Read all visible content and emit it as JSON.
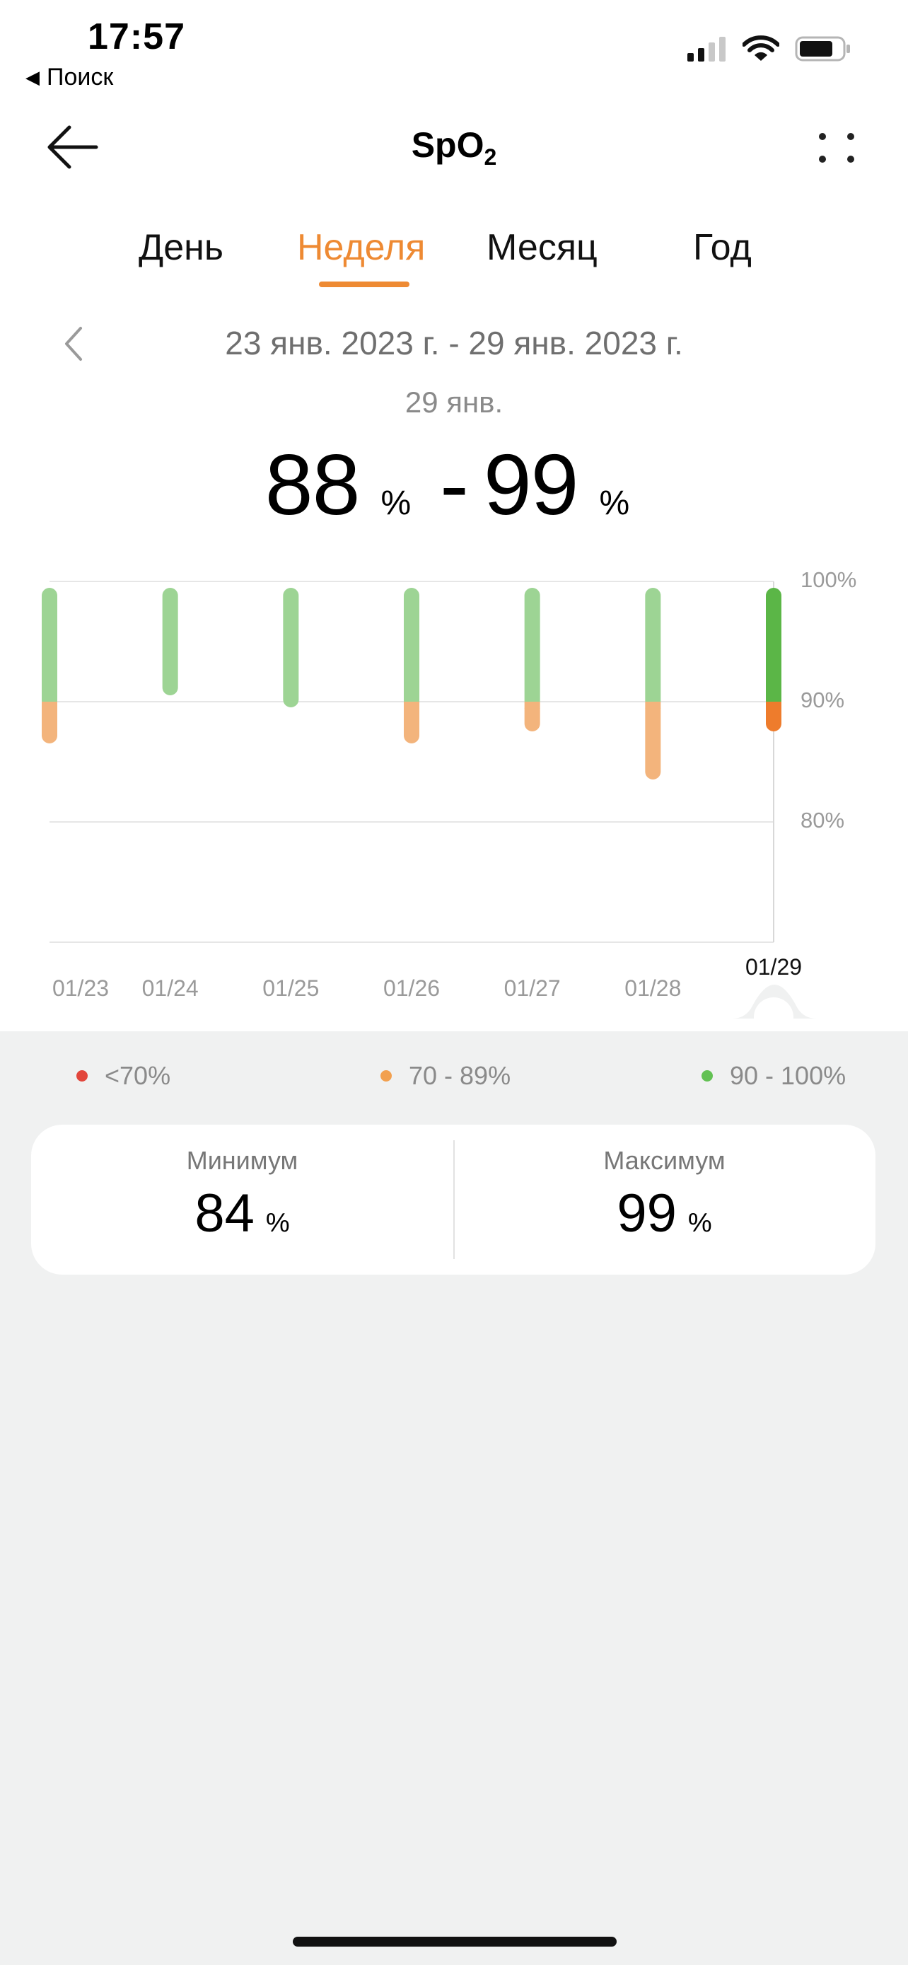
{
  "status_bar": {
    "time": "17:57",
    "back_app": "Поиск"
  },
  "header": {
    "title": "SpO",
    "title_sub": "2"
  },
  "tabs": [
    {
      "label": "День",
      "active": false
    },
    {
      "label": "Неделя",
      "active": true
    },
    {
      "label": "Месяц",
      "active": false
    },
    {
      "label": "Год",
      "active": false
    }
  ],
  "period": {
    "range": "23 янв. 2023 г. - 29 янв. 2023 г.",
    "selected_day": "29 янв."
  },
  "selected_range": {
    "min": "88",
    "max": "99",
    "unit": "%",
    "separator": "-"
  },
  "colors": {
    "accent": "#ee8a33",
    "green": "#9dd494",
    "green_selected": "#5bb647",
    "orange": "#f3b47c",
    "orange_selected": "#ee7c2c",
    "red": "#e2463c",
    "legend_orange": "#f2a04f",
    "legend_green": "#62c153"
  },
  "chart_data": {
    "type": "bar",
    "subtype": "range",
    "categories": [
      "01/23",
      "01/24",
      "01/25",
      "01/26",
      "01/27",
      "01/28",
      "01/29"
    ],
    "series": [
      {
        "min": 87,
        "max": 99
      },
      {
        "min": 91,
        "max": 99
      },
      {
        "min": 90,
        "max": 99
      },
      {
        "min": 87,
        "max": 99
      },
      {
        "min": 88,
        "max": 99
      },
      {
        "min": 84,
        "max": 99
      },
      {
        "min": 88,
        "max": 99
      }
    ],
    "selected_index": 6,
    "y_ticks": [
      "100%",
      "90%",
      "80%"
    ],
    "ylim": [
      70,
      100
    ],
    "grid": true
  },
  "legend": [
    {
      "label": "<70%",
      "color": "#e2463c"
    },
    {
      "label": "70 - 89%",
      "color": "#f2a04f"
    },
    {
      "label": "90 - 100%",
      "color": "#62c153"
    }
  ],
  "stats": {
    "min": {
      "label": "Минимум",
      "value": "84",
      "unit": "%"
    },
    "max": {
      "label": "Максимум",
      "value": "99",
      "unit": "%"
    }
  }
}
